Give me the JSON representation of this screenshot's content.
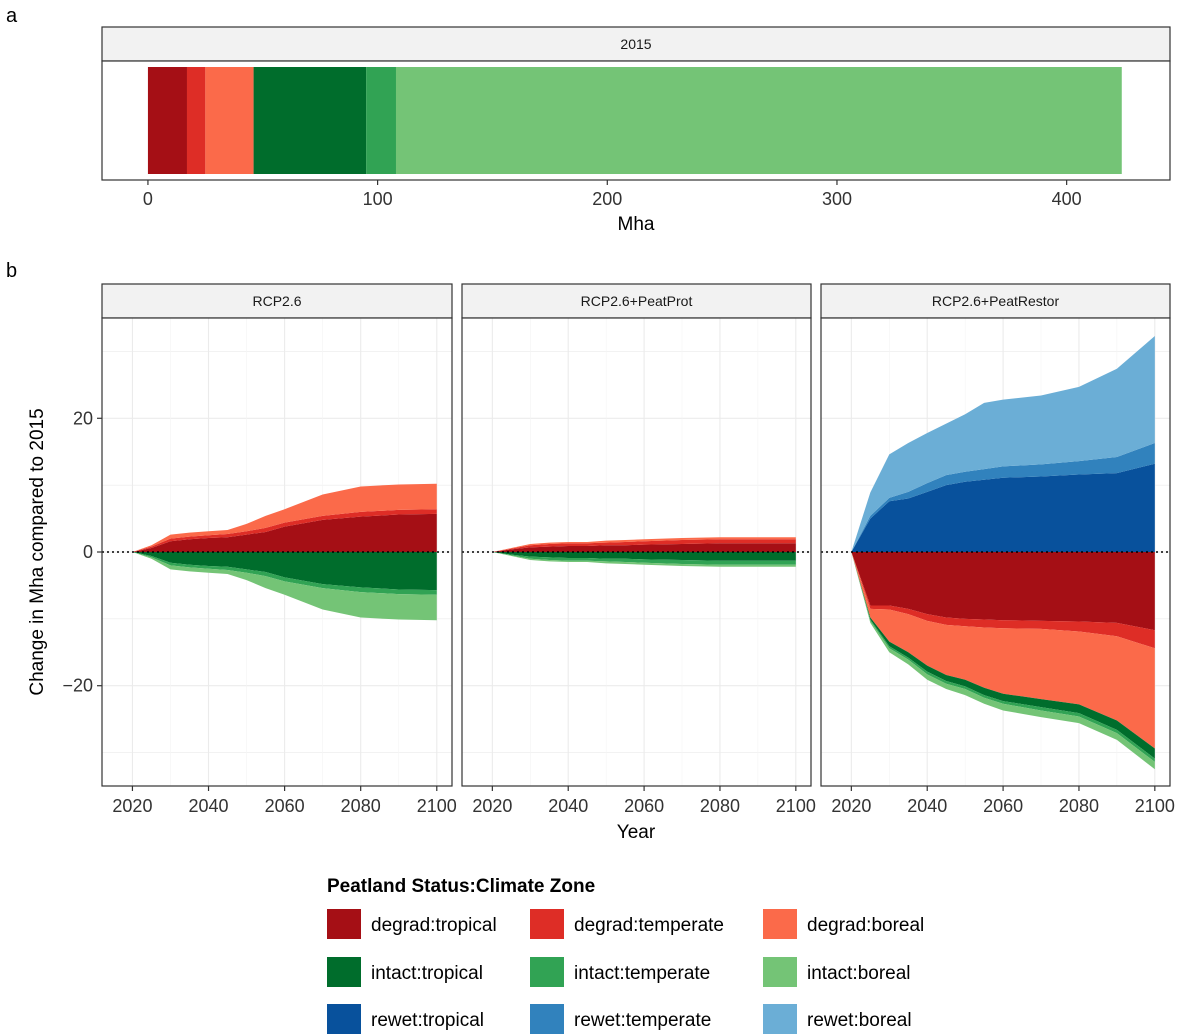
{
  "chart_data": [
    {
      "type": "bar",
      "panel_tag": "a",
      "strip": "2015",
      "xlabel": "Mha",
      "xlim": [
        -20,
        445
      ],
      "xticks": [
        0,
        100,
        200,
        300,
        400
      ],
      "stacked": true,
      "orientation": "horizontal",
      "segments": [
        {
          "name": "degrad:tropical",
          "value": 17
        },
        {
          "name": "degrad:temperate",
          "value": 8
        },
        {
          "name": "degrad:boreal",
          "value": 21
        },
        {
          "name": "intact:tropical",
          "value": 49
        },
        {
          "name": "intact:temperate",
          "value": 13
        },
        {
          "name": "intact:boreal",
          "value": 316
        }
      ]
    },
    {
      "type": "area",
      "panel_tag": "b",
      "xlabel": "Year",
      "ylabel": "Change in Mha compared to 2015",
      "xlim": [
        2012,
        2104
      ],
      "ylim": [
        -35,
        35
      ],
      "xticks": [
        2020,
        2040,
        2060,
        2080,
        2100
      ],
      "yticks": [
        -20,
        0,
        20
      ],
      "reference_line": 0,
      "x": [
        2015,
        2020,
        2025,
        2030,
        2035,
        2040,
        2045,
        2050,
        2055,
        2060,
        2070,
        2080,
        2090,
        2100
      ],
      "facets": [
        {
          "strip": "RCP2.6",
          "series": [
            {
              "name": "degrad:tropical",
              "values": [
                0,
                0,
                0.6,
                1.6,
                1.9,
                2.1,
                2.2,
                2.6,
                3.0,
                3.8,
                4.8,
                5.3,
                5.6,
                5.7
              ]
            },
            {
              "name": "degrad:temperate",
              "values": [
                0,
                0,
                0.2,
                0.4,
                0.4,
                0.4,
                0.5,
                0.5,
                0.6,
                0.6,
                0.6,
                0.7,
                0.7,
                0.7
              ]
            },
            {
              "name": "degrad:boreal",
              "values": [
                0,
                0,
                0.2,
                0.6,
                0.6,
                0.6,
                0.6,
                1.1,
                1.8,
                2.0,
                3.2,
                3.8,
                3.8,
                3.8
              ]
            },
            {
              "name": "intact:tropical",
              "values": [
                0,
                0,
                -0.6,
                -1.6,
                -1.9,
                -2.1,
                -2.2,
                -2.6,
                -3.0,
                -3.8,
                -4.8,
                -5.3,
                -5.6,
                -5.7
              ]
            },
            {
              "name": "intact:temperate",
              "values": [
                0,
                0,
                -0.2,
                -0.4,
                -0.4,
                -0.4,
                -0.5,
                -0.5,
                -0.6,
                -0.6,
                -0.6,
                -0.7,
                -0.7,
                -0.7
              ]
            },
            {
              "name": "intact:boreal",
              "values": [
                0,
                0,
                -0.2,
                -0.6,
                -0.6,
                -0.6,
                -0.6,
                -1.1,
                -1.8,
                -2.0,
                -3.2,
                -3.8,
                -3.8,
                -3.8
              ]
            }
          ]
        },
        {
          "strip": "RCP2.6+PeatProt",
          "series": [
            {
              "name": "degrad:tropical",
              "values": [
                0,
                0,
                0.4,
                0.7,
                0.8,
                0.9,
                0.9,
                1.0,
                1.0,
                1.1,
                1.2,
                1.3,
                1.3,
                1.3
              ]
            },
            {
              "name": "degrad:temperate",
              "values": [
                0,
                0,
                0.1,
                0.3,
                0.4,
                0.4,
                0.4,
                0.4,
                0.5,
                0.5,
                0.6,
                0.6,
                0.6,
                0.6
              ]
            },
            {
              "name": "degrad:boreal",
              "values": [
                0,
                0,
                0.1,
                0.2,
                0.2,
                0.2,
                0.2,
                0.3,
                0.3,
                0.3,
                0.3,
                0.3,
                0.3,
                0.3
              ]
            },
            {
              "name": "intact:tropical",
              "values": [
                0,
                0,
                -0.4,
                -0.7,
                -0.8,
                -0.9,
                -0.9,
                -1.0,
                -1.0,
                -1.1,
                -1.2,
                -1.3,
                -1.3,
                -1.3
              ]
            },
            {
              "name": "intact:temperate",
              "values": [
                0,
                0,
                -0.1,
                -0.3,
                -0.4,
                -0.4,
                -0.4,
                -0.4,
                -0.5,
                -0.5,
                -0.6,
                -0.6,
                -0.6,
                -0.6
              ]
            },
            {
              "name": "intact:boreal",
              "values": [
                0,
                0,
                -0.1,
                -0.2,
                -0.2,
                -0.2,
                -0.2,
                -0.3,
                -0.3,
                -0.3,
                -0.3,
                -0.3,
                -0.3,
                -0.3
              ]
            }
          ]
        },
        {
          "strip": "RCP2.6+PeatRestor",
          "series": [
            {
              "name": "degrad:tropical",
              "values": [
                0,
                0,
                -8.0,
                -8.0,
                -8.5,
                -9.3,
                -9.8,
                -10.0,
                -10.1,
                -10.2,
                -10.3,
                -10.4,
                -10.6,
                -11.7
              ]
            },
            {
              "name": "degrad:temperate",
              "values": [
                0,
                0,
                -0.5,
                -0.6,
                -0.8,
                -1.0,
                -1.1,
                -1.1,
                -1.2,
                -1.2,
                -1.2,
                -1.5,
                -2.0,
                -2.7
              ]
            },
            {
              "name": "degrad:boreal",
              "values": [
                0,
                0,
                -1.3,
                -4.8,
                -5.7,
                -6.7,
                -7.5,
                -8.0,
                -9.0,
                -9.8,
                -10.5,
                -10.9,
                -12.6,
                -15.0
              ]
            },
            {
              "name": "intact:tropical",
              "values": [
                0,
                0,
                -0.3,
                -0.7,
                -0.8,
                -0.9,
                -0.9,
                -1.0,
                -1.1,
                -1.1,
                -1.2,
                -1.3,
                -1.4,
                -1.5
              ]
            },
            {
              "name": "intact:temperate",
              "values": [
                0,
                0,
                -0.2,
                -0.3,
                -0.3,
                -0.4,
                -0.4,
                -0.4,
                -0.4,
                -0.4,
                -0.5,
                -0.5,
                -0.5,
                -0.5
              ]
            },
            {
              "name": "intact:boreal",
              "values": [
                0,
                0,
                -0.3,
                -0.6,
                -0.7,
                -0.8,
                -0.8,
                -0.9,
                -0.9,
                -1.0,
                -1.0,
                -1.0,
                -1.0,
                -1.1
              ]
            },
            {
              "name": "rewet:tropical",
              "values": [
                0,
                0,
                5.0,
                7.6,
                8.0,
                9.0,
                10.0,
                10.5,
                10.8,
                11.1,
                11.3,
                11.6,
                11.8,
                13.2
              ]
            },
            {
              "name": "rewet:temperate",
              "values": [
                0,
                0,
                0.4,
                0.5,
                1.0,
                1.3,
                1.5,
                1.5,
                1.6,
                1.7,
                1.8,
                2.0,
                2.4,
                3.1
              ]
            },
            {
              "name": "rewet:boreal",
              "values": [
                0,
                0,
                3.5,
                6.5,
                7.3,
                7.5,
                7.7,
                8.6,
                9.9,
                10.0,
                10.3,
                11.1,
                13.2,
                16.0
              ]
            }
          ]
        }
      ]
    }
  ],
  "legend": {
    "title": "Peatland Status:Climate Zone",
    "items": [
      {
        "label": "degrad:tropical",
        "color": "#A50F15"
      },
      {
        "label": "degrad:temperate",
        "color": "#DE2D26"
      },
      {
        "label": "degrad:boreal",
        "color": "#FB6A4A"
      },
      {
        "label": "intact:tropical",
        "color": "#006D2C"
      },
      {
        "label": "intact:temperate",
        "color": "#31A354"
      },
      {
        "label": "intact:boreal",
        "color": "#74C476"
      },
      {
        "label": "rewet:tropical",
        "color": "#08519C"
      },
      {
        "label": "rewet:temperate",
        "color": "#3182BD"
      },
      {
        "label": "rewet:boreal",
        "color": "#6BAED6"
      }
    ]
  }
}
